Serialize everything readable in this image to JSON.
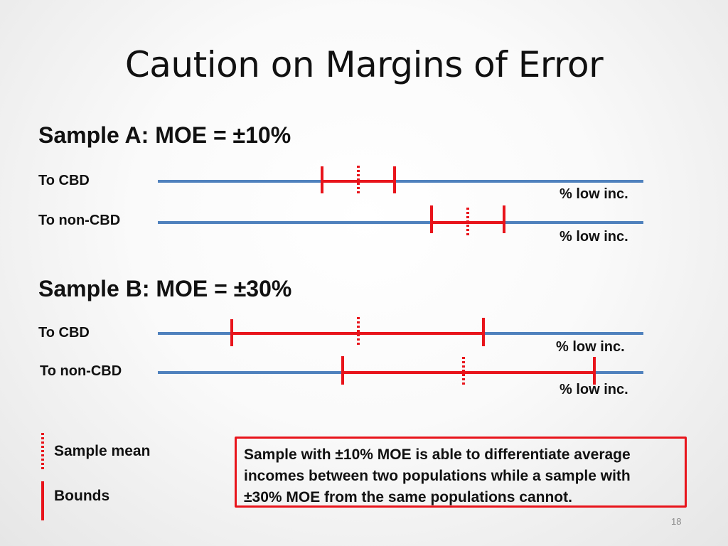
{
  "title": "Caution on Margins of Error",
  "sections": [
    {
      "heading": "Sample A: MOE = ±10%",
      "rows": [
        {
          "label": "To CBD",
          "axis_label": "% low inc.",
          "lower": 453,
          "mean": 504,
          "upper": 555
        },
        {
          "label": "To non-CBD",
          "axis_label": "% low inc.",
          "lower": 607,
          "mean": 658,
          "upper": 709
        }
      ]
    },
    {
      "heading": "Sample B: MOE = ±30%",
      "rows": [
        {
          "label": "To CBD",
          "axis_label": "% low inc.",
          "lower": 326,
          "mean": 504,
          "upper": 680
        },
        {
          "label": "To non-CBD",
          "axis_label": "% low inc.",
          "lower": 482,
          "mean": 652,
          "upper": 836
        }
      ]
    }
  ],
  "legend": {
    "mean_label": "Sample mean",
    "bounds_label": "Bounds"
  },
  "note_lines": [
    "Sample with ±10% MOE is able to differentiate average",
    "incomes between two populations while a sample with",
    "±30% MOE from the same populations cannot."
  ],
  "page_number": "18",
  "colors": {
    "axis": "#4f81bd",
    "interval": "#e8141b"
  }
}
